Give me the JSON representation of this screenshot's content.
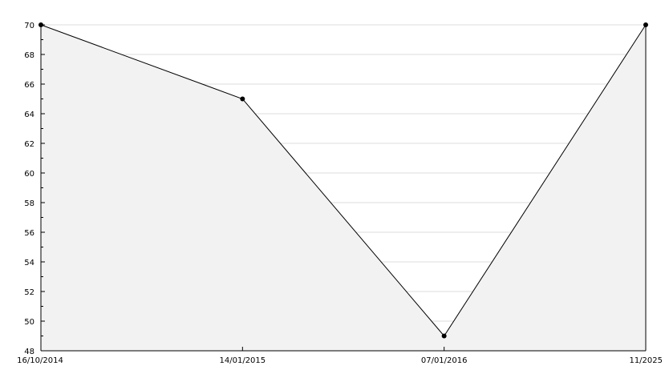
{
  "chart_data": {
    "type": "area",
    "title": "",
    "xlabel": "",
    "ylabel": "",
    "categories": [
      "16/10/2014",
      "14/01/2015",
      "07/01/2016",
      "11/2025"
    ],
    "series": [
      {
        "values": [
          70,
          65,
          49,
          70
        ]
      }
    ],
    "ylim": [
      48,
      70
    ],
    "yticks": [
      48,
      50,
      52,
      54,
      56,
      58,
      60,
      62,
      64,
      66,
      68,
      70
    ],
    "grid": true,
    "legend": "none",
    "colors": {
      "line": "#000000",
      "fill": "#f2f2f2",
      "grid": "#dddddd",
      "marker": "#000000"
    }
  }
}
